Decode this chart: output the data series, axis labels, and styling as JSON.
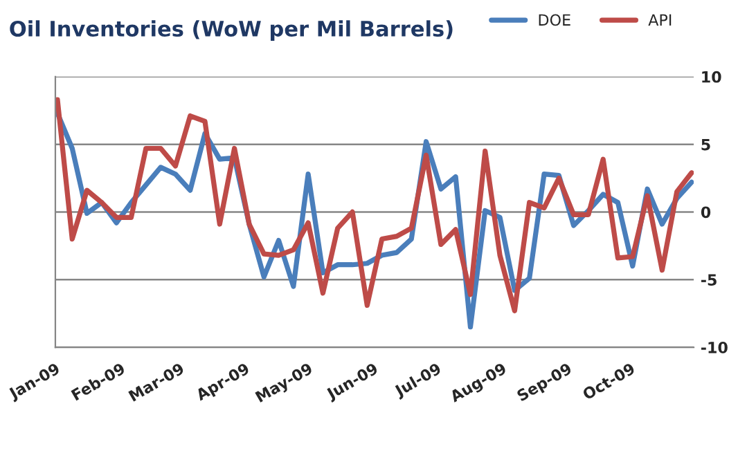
{
  "chart_data": {
    "type": "line",
    "title": "Oil Inventories (WoW per Mil Barrels)",
    "x": [
      "2009-01-02",
      "2009-01-09",
      "2009-01-16",
      "2009-01-23",
      "2009-01-30",
      "2009-02-06",
      "2009-02-13",
      "2009-02-20",
      "2009-02-27",
      "2009-03-06",
      "2009-03-13",
      "2009-03-20",
      "2009-03-27",
      "2009-04-03",
      "2009-04-10",
      "2009-04-17",
      "2009-04-24",
      "2009-05-01",
      "2009-05-08",
      "2009-05-15",
      "2009-05-22",
      "2009-05-29",
      "2009-06-05",
      "2009-06-12",
      "2009-06-19",
      "2009-06-26",
      "2009-07-03",
      "2009-07-10",
      "2009-07-17",
      "2009-07-24",
      "2009-07-31",
      "2009-08-07",
      "2009-08-14",
      "2009-08-21",
      "2009-08-28",
      "2009-09-04",
      "2009-09-11",
      "2009-09-18",
      "2009-09-25",
      "2009-10-02",
      "2009-10-09",
      "2009-10-16",
      "2009-10-23",
      "2009-10-30"
    ],
    "series": [
      {
        "name": "DOE",
        "color": "#4a7ebb",
        "values": [
          7.3,
          4.7,
          -0.1,
          0.7,
          -0.8,
          0.7,
          2.0,
          3.3,
          2.8,
          1.6,
          5.8,
          3.9,
          4.0,
          -0.9,
          -4.8,
          -2.1,
          -5.5,
          2.8,
          -4.5,
          -3.9,
          -3.9,
          -3.8,
          -3.2,
          -3.0,
          -2.0,
          5.2,
          1.7,
          2.6,
          -8.5,
          0.1,
          -0.4,
          -5.8,
          -4.9,
          2.8,
          2.7,
          -1.0,
          0.1,
          1.3,
          0.7,
          -4.0,
          1.7,
          -0.9,
          1.0,
          2.2
        ]
      },
      {
        "name": "API",
        "color": "#be4b48",
        "values": [
          8.3,
          -2.0,
          1.6,
          0.7,
          -0.4,
          -0.4,
          4.7,
          4.7,
          3.4,
          7.1,
          6.7,
          -0.9,
          4.7,
          -0.9,
          -3.1,
          -3.2,
          -2.8,
          -0.8,
          -6.0,
          -1.2,
          0.0,
          -6.9,
          -2.0,
          -1.8,
          -1.2,
          4.2,
          -2.4,
          -1.3,
          -6.1,
          4.5,
          -3.2,
          -7.3,
          0.7,
          0.3,
          2.5,
          -0.2,
          -0.2,
          3.9,
          -3.4,
          -3.3,
          1.2,
          -4.3,
          1.5,
          2.9
        ]
      }
    ],
    "xlim": [
      "2009-01-01",
      "2009-10-31"
    ],
    "xticks": [
      {
        "value": "2009-01-01",
        "label": "Jan-09"
      },
      {
        "value": "2009-02-01",
        "label": "Feb-09"
      },
      {
        "value": "2009-03-01",
        "label": "Mar-09"
      },
      {
        "value": "2009-04-01",
        "label": "Apr-09"
      },
      {
        "value": "2009-05-01",
        "label": "May-09"
      },
      {
        "value": "2009-06-01",
        "label": "Jun-09"
      },
      {
        "value": "2009-07-01",
        "label": "Jul-09"
      },
      {
        "value": "2009-08-01",
        "label": "Aug-09"
      },
      {
        "value": "2009-09-01",
        "label": "Sep-09"
      },
      {
        "value": "2009-10-01",
        "label": "Oct-09"
      }
    ],
    "ylim": [
      -10,
      10
    ],
    "yticks": [
      -10,
      -5,
      0,
      5,
      10
    ],
    "grid": "y",
    "legend": "top right",
    "marker": "none",
    "line_style": "solid"
  }
}
